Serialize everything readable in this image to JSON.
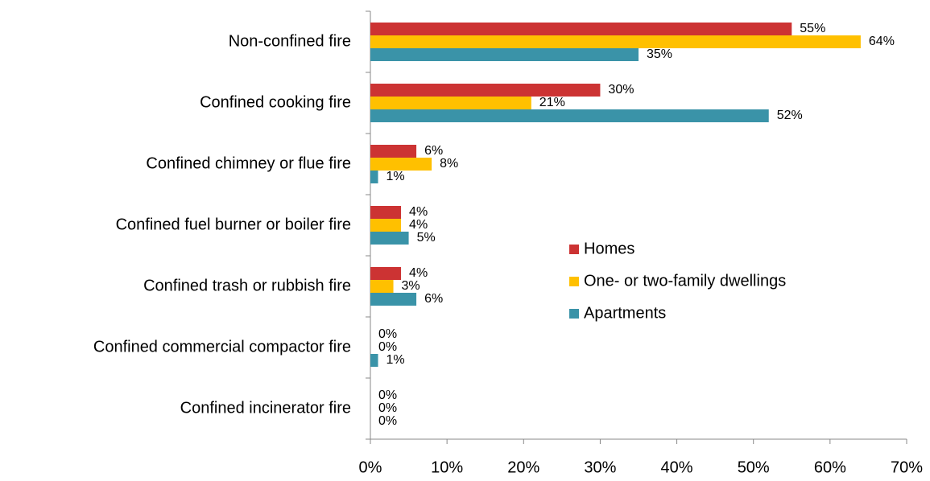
{
  "chart_data": {
    "type": "bar",
    "orientation": "horizontal",
    "categories": [
      "Non-confined fire",
      "Confined cooking fire",
      "Confined chimney or flue fire",
      "Confined fuel burner or boiler fire",
      "Confined trash or rubbish fire",
      "Confined commercial compactor fire",
      "Confined incinerator fire"
    ],
    "series": [
      {
        "name": "Homes",
        "color": "#cc3333",
        "values": [
          55,
          30,
          6,
          4,
          4,
          0,
          0
        ],
        "value_labels": [
          "55%",
          "30%",
          "6%",
          "4%",
          "4%",
          "0%",
          "0%"
        ]
      },
      {
        "name": "One- or two-family dwellings",
        "color": "#ffc000",
        "values": [
          64,
          21,
          8,
          4,
          3,
          0,
          0
        ],
        "value_labels": [
          "64%",
          "21%",
          "8%",
          "4%",
          "3%",
          "0%",
          "0%"
        ]
      },
      {
        "name": "Apartments",
        "color": "#3a93a8",
        "values": [
          35,
          52,
          1,
          5,
          6,
          1,
          0
        ],
        "value_labels": [
          "35%",
          "52%",
          "1%",
          "5%",
          "6%",
          "1%",
          "0%"
        ]
      }
    ],
    "xlim": [
      0,
      70
    ],
    "xticks": [
      {
        "value": 0,
        "label": "0%"
      },
      {
        "value": 10,
        "label": "10%"
      },
      {
        "value": 20,
        "label": "20%"
      },
      {
        "value": 30,
        "label": "30%"
      },
      {
        "value": 40,
        "label": "40%"
      },
      {
        "value": 50,
        "label": "50%"
      },
      {
        "value": 60,
        "label": "60%"
      },
      {
        "value": 70,
        "label": "70%"
      }
    ],
    "grid": false,
    "legend": "right"
  }
}
